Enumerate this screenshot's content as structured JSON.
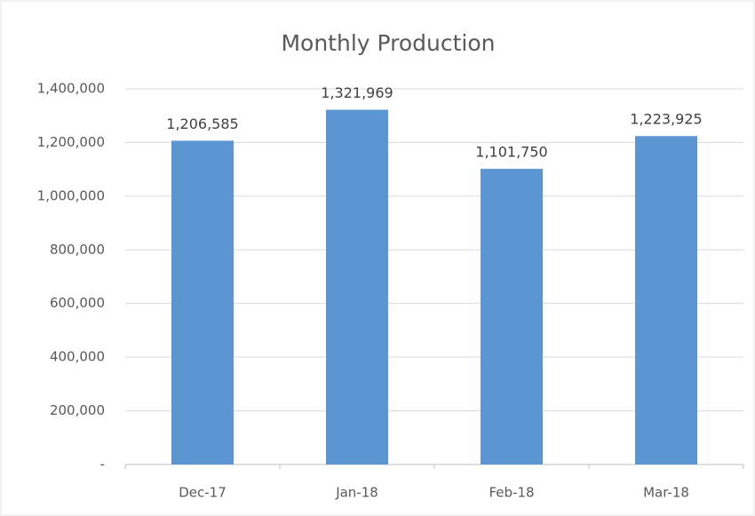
{
  "chart_data": {
    "type": "bar",
    "title": "Monthly Production",
    "categories": [
      "Dec-17",
      "Jan-18",
      "Feb-18",
      "Mar-18"
    ],
    "values": [
      1206585,
      1321969,
      1101750,
      1223925
    ],
    "value_labels": [
      "1,206,585",
      "1,321,969",
      "1,101,750",
      "1,223,925"
    ],
    "color": "#5b95d2",
    "ylim": [
      0,
      1400000
    ],
    "yticks": [
      {
        "value": 0,
        "label": "-"
      },
      {
        "value": 200000,
        "label": "200,000"
      },
      {
        "value": 400000,
        "label": "400,000"
      },
      {
        "value": 600000,
        "label": "600,000"
      },
      {
        "value": 800000,
        "label": "800,000"
      },
      {
        "value": 1000000,
        "label": "1,000,000"
      },
      {
        "value": 1200000,
        "label": "1,200,000"
      },
      {
        "value": 1400000,
        "label": "1,400,000"
      }
    ],
    "grid": true
  }
}
